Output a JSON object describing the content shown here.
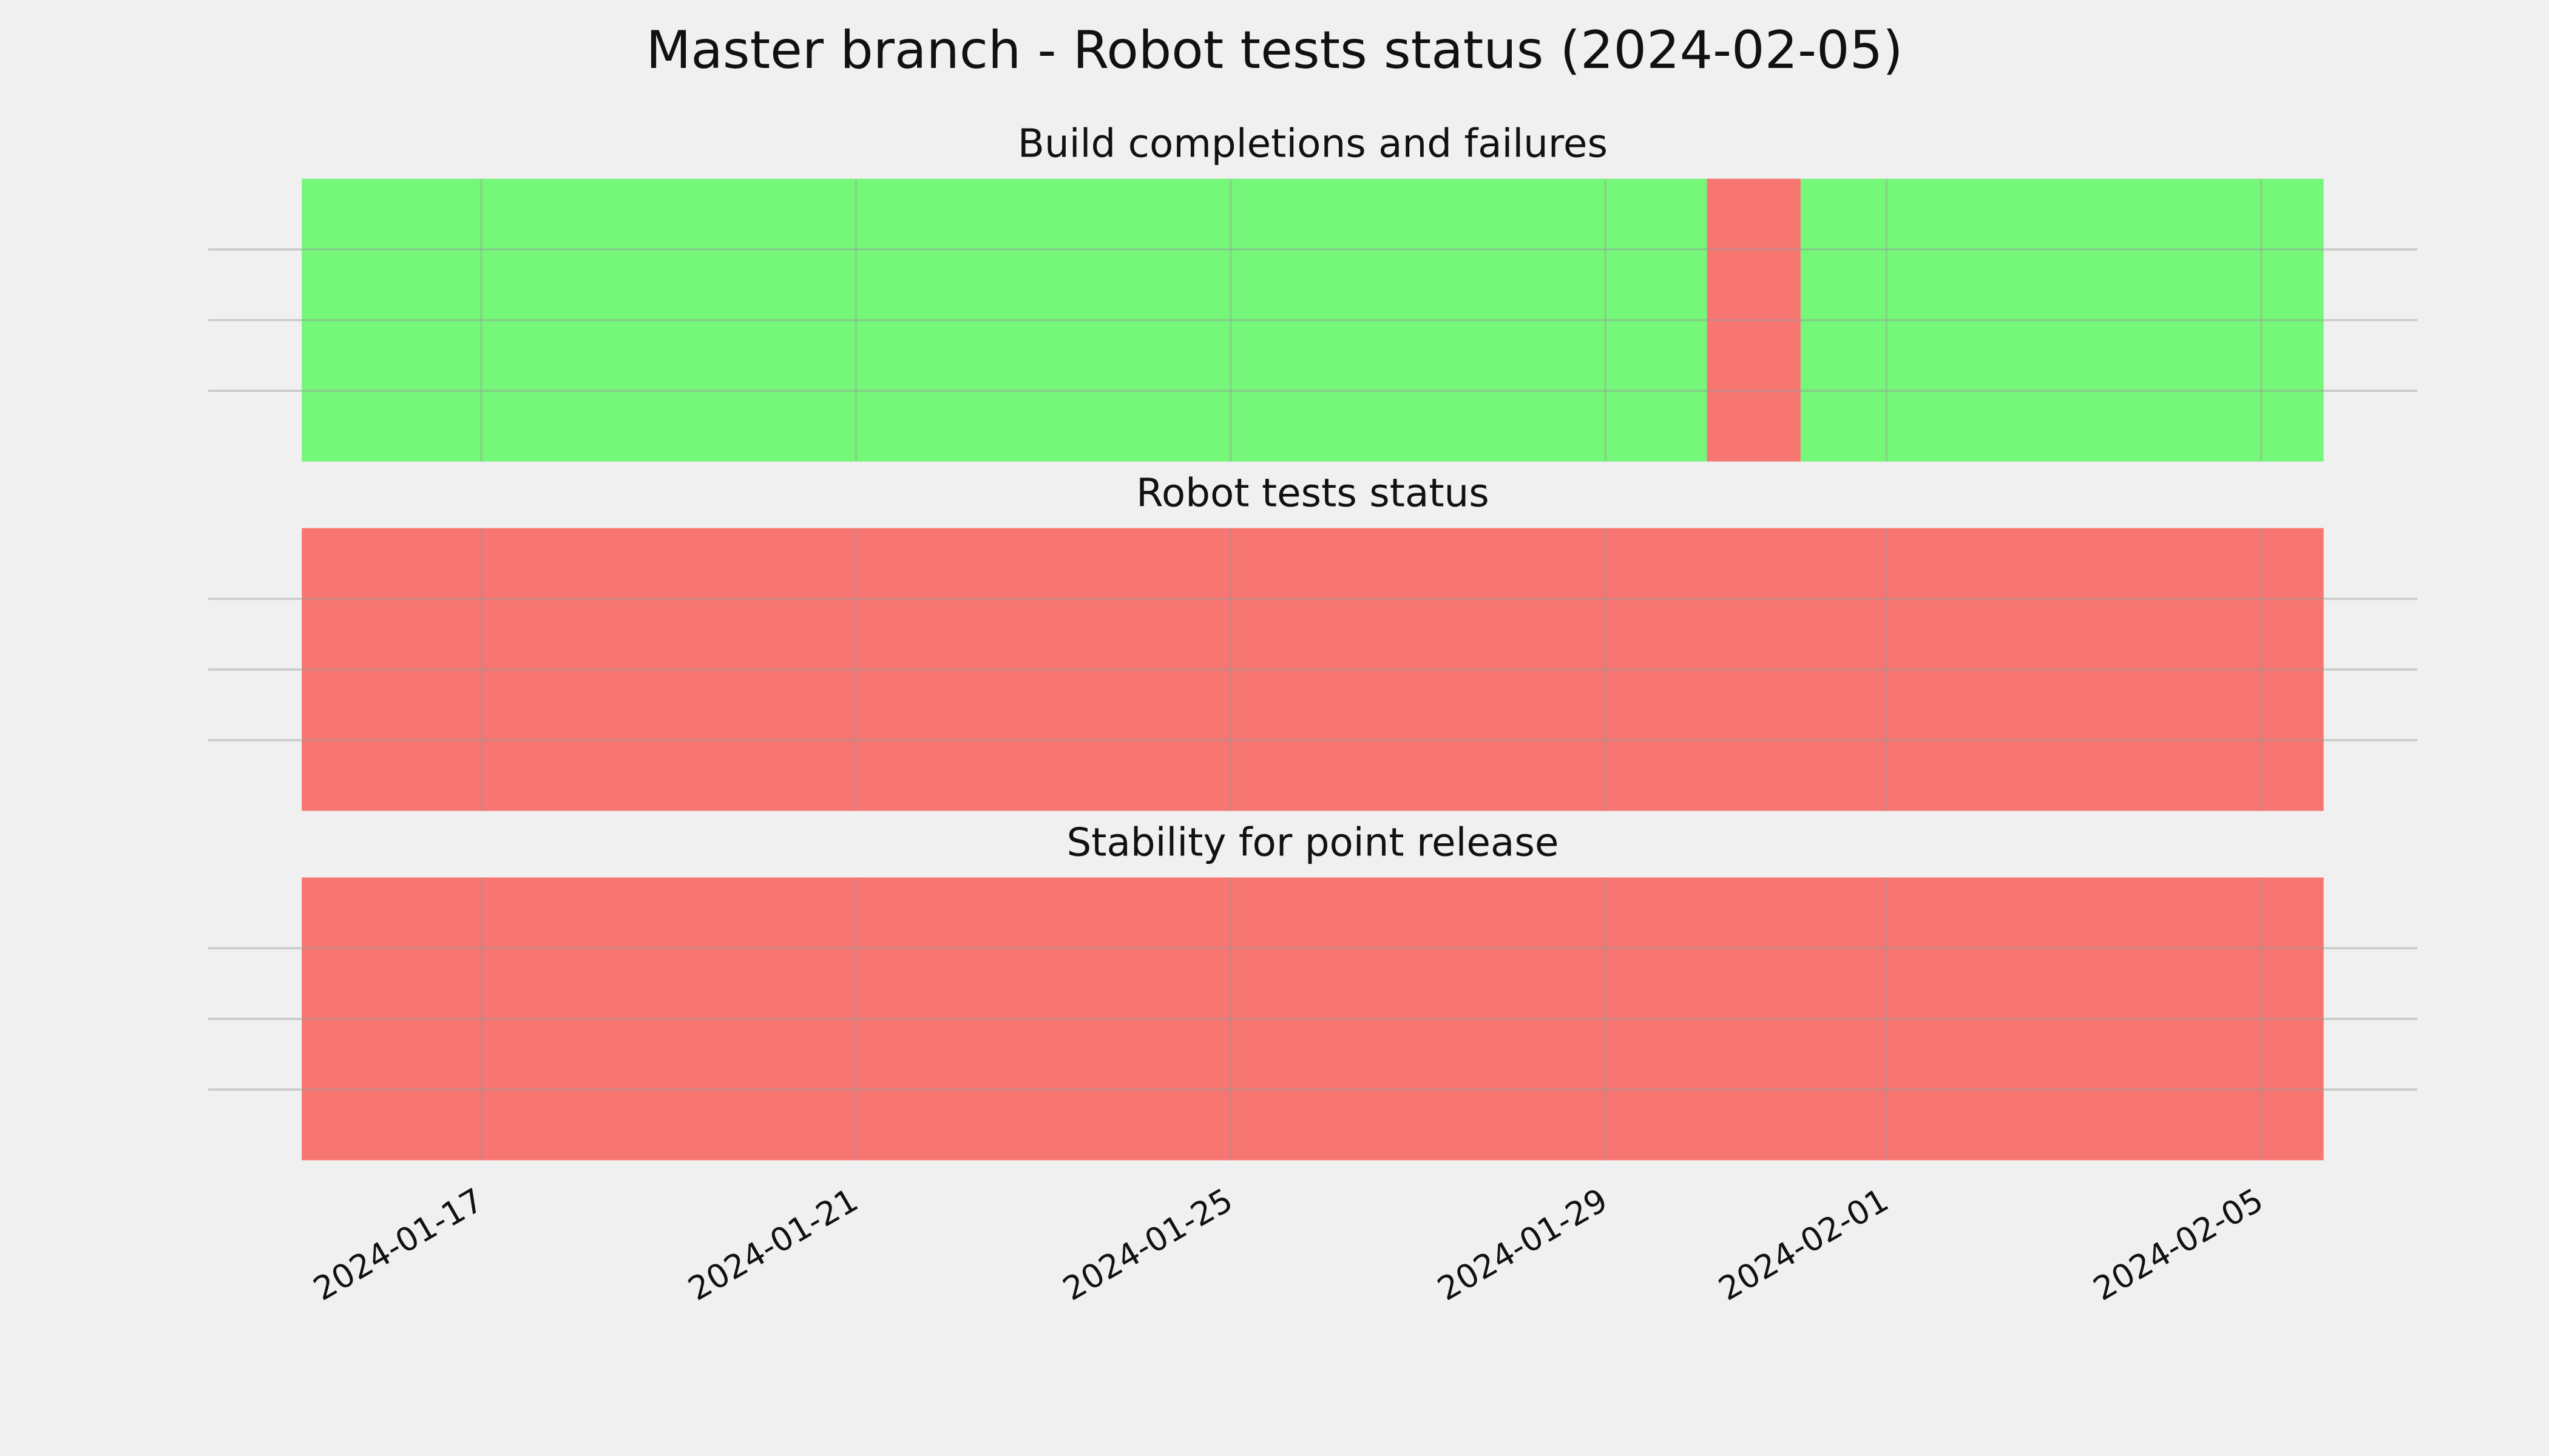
{
  "title": "Master branch - Robot tests status (2024-02-05)",
  "chart_data": [
    {
      "type": "timeline",
      "title": "Build completions and failures",
      "spans": [
        {
          "start": "2024-01-15T02:00",
          "end": "2024-01-30T02:00",
          "color": "#75f779"
        },
        {
          "start": "2024-01-30T02:00",
          "end": "2024-01-31T02:00",
          "color": "#f77672"
        },
        {
          "start": "2024-01-31T02:00",
          "end": "2024-02-05T16:00",
          "color": "#75f779"
        }
      ],
      "xlim": [
        "2024-01-14T02:00",
        "2024-02-06T16:00"
      ],
      "xticks": [
        "2024-01-17",
        "2024-01-21",
        "2024-01-25",
        "2024-01-29",
        "2024-02-01",
        "2024-02-05"
      ],
      "ylim": [
        0,
        1
      ],
      "yticks": [
        0.25,
        0.5,
        0.75
      ],
      "grid": true,
      "show_xtick_labels": false
    },
    {
      "type": "timeline",
      "title": "Robot tests status",
      "spans": [
        {
          "start": "2024-01-15T02:00",
          "end": "2024-02-05T16:00",
          "color": "#f77672"
        }
      ],
      "xlim": [
        "2024-01-14T02:00",
        "2024-02-06T16:00"
      ],
      "xticks": [
        "2024-01-17",
        "2024-01-21",
        "2024-01-25",
        "2024-01-29",
        "2024-02-01",
        "2024-02-05"
      ],
      "ylim": [
        0,
        1
      ],
      "yticks": [
        0.25,
        0.5,
        0.75
      ],
      "grid": true,
      "show_xtick_labels": false
    },
    {
      "type": "timeline",
      "title": "Stability for point release",
      "spans": [
        {
          "start": "2024-01-15T02:00",
          "end": "2024-02-05T16:00",
          "color": "#f77672"
        }
      ],
      "xlim": [
        "2024-01-14T02:00",
        "2024-02-06T16:00"
      ],
      "xticks": [
        "2024-01-17",
        "2024-01-21",
        "2024-01-25",
        "2024-01-29",
        "2024-02-01",
        "2024-02-05"
      ],
      "ylim": [
        0,
        1
      ],
      "yticks": [
        0.25,
        0.5,
        0.75
      ],
      "grid": true,
      "show_xtick_labels": true
    }
  ]
}
